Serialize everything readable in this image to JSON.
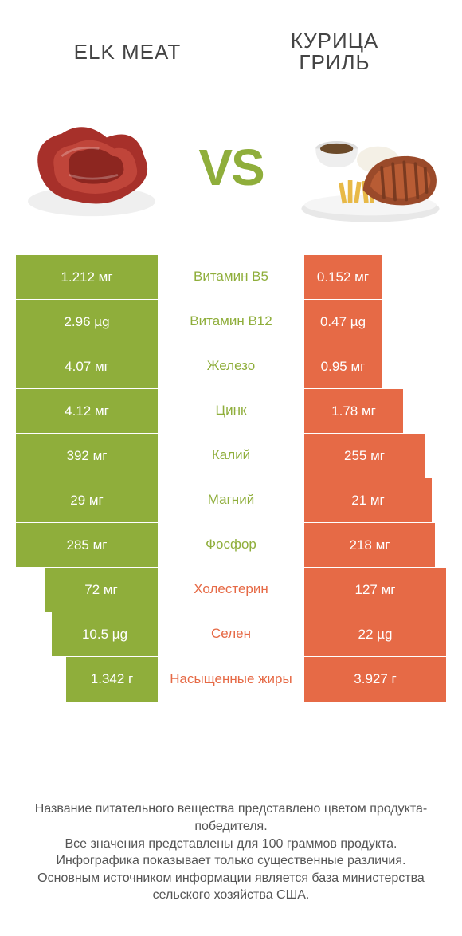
{
  "colors": {
    "green": "#8fae3b",
    "orange": "#e66a46",
    "green_text": "#8fae3b",
    "orange_text": "#e66a46",
    "background": "#ffffff"
  },
  "header": {
    "left_title": "ELK MEAT",
    "right_title": "КУРИЦА\nГРИЛЬ",
    "vs_label": "VS"
  },
  "comparison": {
    "left_full_width": 180,
    "right_full_width": 180,
    "rows": [
      {
        "nutrient": "Витамин B5",
        "left_value": "1.212 мг",
        "right_value": "0.152 мг",
        "winner": "left",
        "left_bar": 1.0,
        "right_bar": 0.55
      },
      {
        "nutrient": "Витамин B12",
        "left_value": "2.96 µg",
        "right_value": "0.47 µg",
        "winner": "left",
        "left_bar": 1.0,
        "right_bar": 0.55
      },
      {
        "nutrient": "Железо",
        "left_value": "4.07 мг",
        "right_value": "0.95 мг",
        "winner": "left",
        "left_bar": 1.0,
        "right_bar": 0.55
      },
      {
        "nutrient": "Цинк",
        "left_value": "4.12 мг",
        "right_value": "1.78 мг",
        "winner": "left",
        "left_bar": 1.0,
        "right_bar": 0.7
      },
      {
        "nutrient": "Калий",
        "left_value": "392 мг",
        "right_value": "255 мг",
        "winner": "left",
        "left_bar": 1.0,
        "right_bar": 0.85
      },
      {
        "nutrient": "Магний",
        "left_value": "29 мг",
        "right_value": "21 мг",
        "winner": "left",
        "left_bar": 1.0,
        "right_bar": 0.9
      },
      {
        "nutrient": "Фосфор",
        "left_value": "285 мг",
        "right_value": "218 мг",
        "winner": "left",
        "left_bar": 1.0,
        "right_bar": 0.92
      },
      {
        "nutrient": "Холестерин",
        "left_value": "72 мг",
        "right_value": "127 мг",
        "winner": "right",
        "left_bar": 0.8,
        "right_bar": 1.0
      },
      {
        "nutrient": "Селен",
        "left_value": "10.5 µg",
        "right_value": "22 µg",
        "winner": "right",
        "left_bar": 0.75,
        "right_bar": 1.0
      },
      {
        "nutrient": "Насыщенные жиры",
        "left_value": "1.342 г",
        "right_value": "3.927 г",
        "winner": "right",
        "left_bar": 0.65,
        "right_bar": 1.0
      }
    ]
  },
  "footer": {
    "line1": "Название питательного вещества представлено цветом продукта-победителя.",
    "line2": "Все значения представлены для 100 граммов продукта.",
    "line3": "Инфографика показывает только существенные различия.",
    "line4": "Основным источником информации является база министерства сельского хозяйства США."
  }
}
